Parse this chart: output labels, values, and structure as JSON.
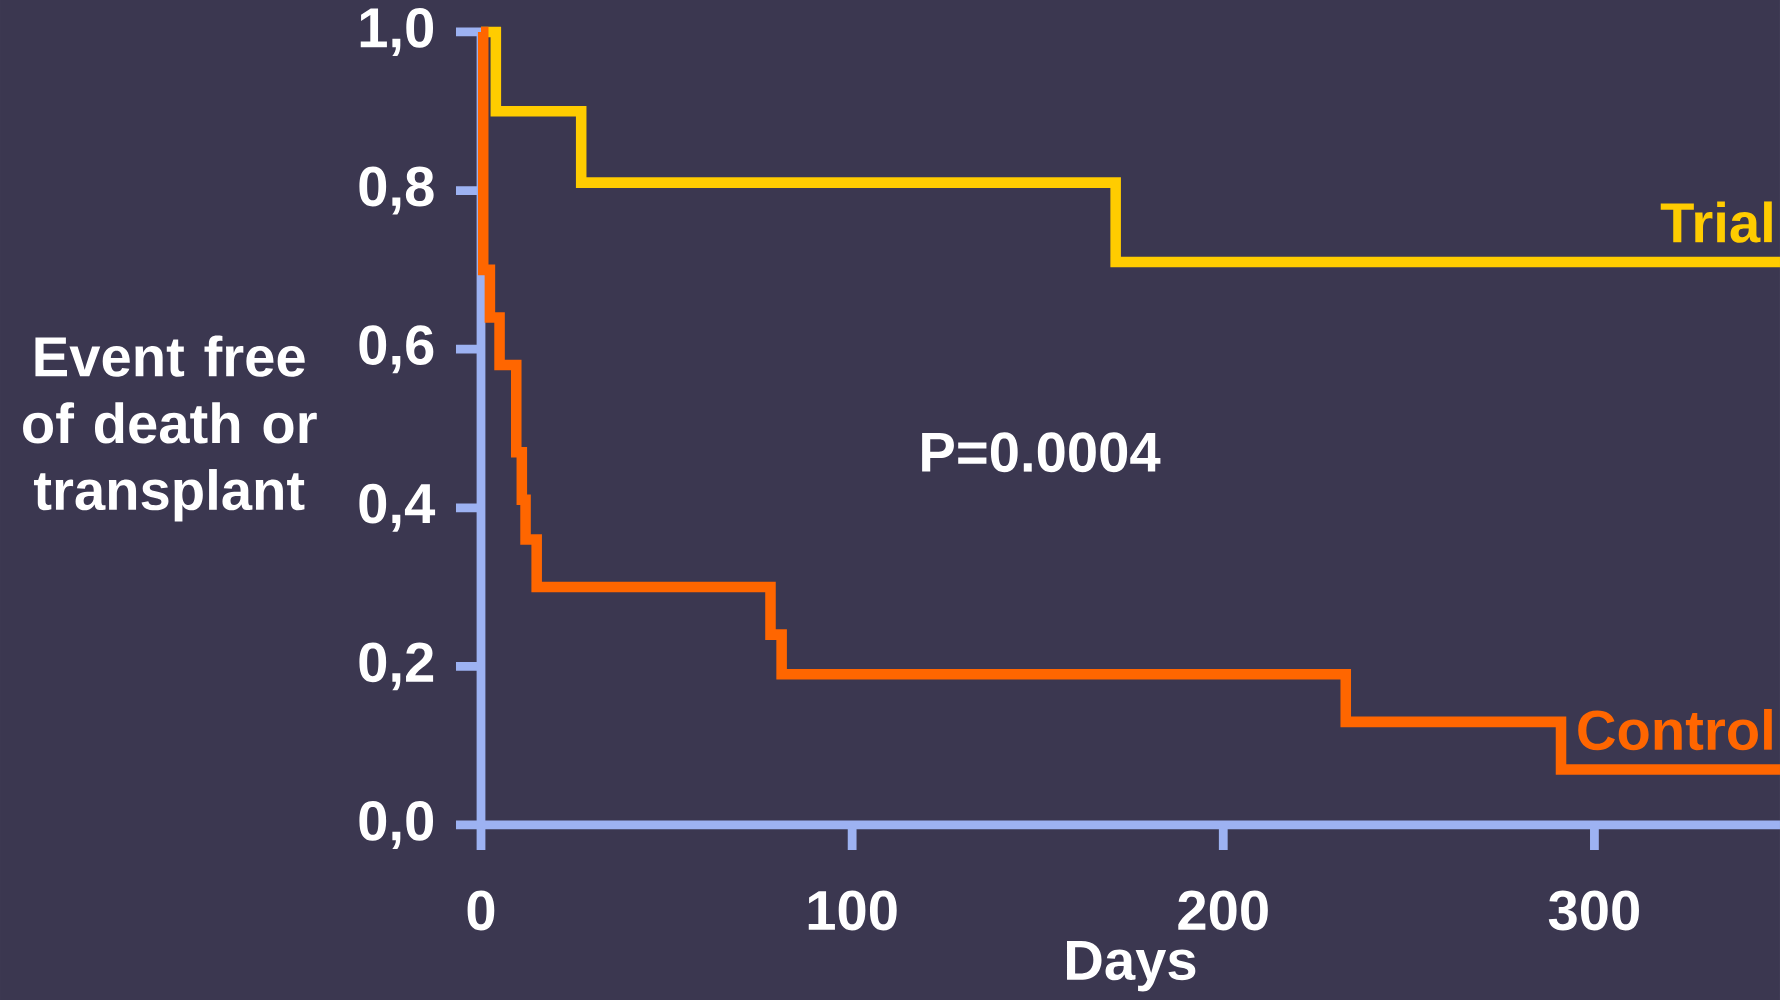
{
  "chart_data": {
    "type": "step",
    "ylabel": "Event free of death or transplant",
    "xlabel": "Days",
    "xlim": [
      0,
      350
    ],
    "ylim": [
      0,
      1
    ],
    "xticks": [
      0,
      100,
      200,
      300
    ],
    "yticks": [
      {
        "value": 0,
        "label": "0,0"
      },
      {
        "value": 0.2,
        "label": "0,2"
      },
      {
        "value": 0.4,
        "label": "0,4"
      },
      {
        "value": 0.6,
        "label": "0,6"
      },
      {
        "value": 0.8,
        "label": "0,8"
      },
      {
        "value": 1,
        "label": "1,0"
      }
    ],
    "series": [
      {
        "name": "Trial",
        "color": "#ffcc00",
        "x": [
          0,
          4,
          27,
          171,
          350
        ],
        "values": [
          1.0,
          0.9,
          0.81,
          0.71,
          0.71
        ]
      },
      {
        "name": "Control",
        "color": "#ff6600",
        "x": [
          0,
          0.6,
          2.4,
          5,
          9.5,
          11,
          12,
          15,
          78,
          81,
          233,
          291,
          350
        ],
        "values": [
          1.0,
          0.7,
          0.64,
          0.58,
          0.47,
          0.41,
          0.36,
          0.3,
          0.24,
          0.19,
          0.13,
          0.07,
          0.07
        ]
      }
    ],
    "annotations": [
      "P=0.0004"
    ]
  }
}
